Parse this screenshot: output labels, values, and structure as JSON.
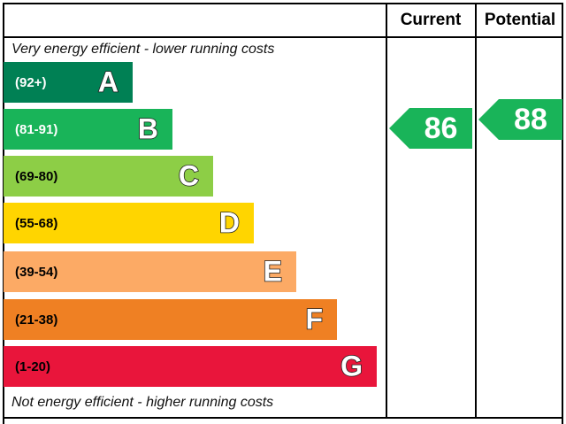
{
  "header": {
    "current": "Current",
    "potential": "Potential"
  },
  "top_note": "Very energy efficient - lower running costs",
  "bottom_note": "Not energy efficient - higher running costs",
  "bands": [
    {
      "range": "(92+)",
      "letter": "A",
      "color": "#008054",
      "text_color": "#ffffff"
    },
    {
      "range": "(81-91)",
      "letter": "B",
      "color": "#19b459",
      "text_color": "#ffffff"
    },
    {
      "range": "(69-80)",
      "letter": "C",
      "color": "#8dce46",
      "text_color": "#000000"
    },
    {
      "range": "(55-68)",
      "letter": "D",
      "color": "#ffd500",
      "text_color": "#000000"
    },
    {
      "range": "(39-54)",
      "letter": "E",
      "color": "#fcaa65",
      "text_color": "#000000"
    },
    {
      "range": "(21-38)",
      "letter": "F",
      "color": "#ef8023",
      "text_color": "#000000"
    },
    {
      "range": "(1-20)",
      "letter": "G",
      "color": "#e9153b",
      "text_color": "#000000"
    }
  ],
  "current": {
    "value": 86,
    "color": "#19b459"
  },
  "potential": {
    "value": 88,
    "color": "#19b459"
  }
}
